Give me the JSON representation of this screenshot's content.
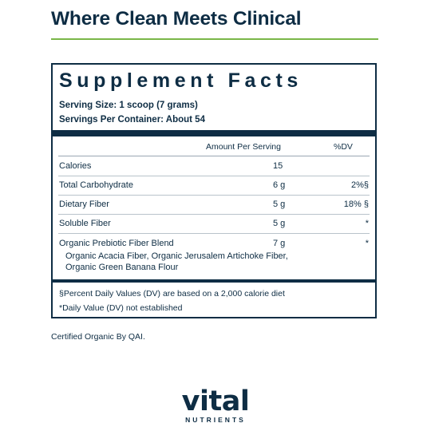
{
  "headline": "Where Clean Meets Clinical",
  "colors": {
    "navy": "#0e2d44",
    "accent_green": "#7ab648"
  },
  "facts": {
    "title": "Supplement Facts",
    "serving_size": "Serving Size: 1 scoop (7 grams)",
    "servings_per_container": "Servings Per Container: About 54",
    "col_amount": "Amount Per Serving",
    "col_dv": "%DV",
    "rows": [
      {
        "name": "Calories",
        "amount": "15",
        "dv": ""
      },
      {
        "name": "Total Carbohydrate",
        "amount": "6 g",
        "dv": "2%§"
      },
      {
        "name": "Dietary Fiber",
        "amount": "5 g",
        "dv": "18% §"
      },
      {
        "name": "Soluble Fiber",
        "amount": "5 g",
        "dv": "*"
      },
      {
        "name": "Organic Prebiotic Fiber Blend",
        "amount": "7 g",
        "dv": "*",
        "sub": "Organic Acacia Fiber, Organic Jerusalem Artichoke Fiber, Organic Green Banana Flour"
      }
    ],
    "footnote_1": "§Percent Daily Values (DV) are based on a 2,000 calorie diet",
    "footnote_2": "*Daily Value (DV) not established"
  },
  "certification": "Certified Organic By QAI.",
  "brand": {
    "name": "vital",
    "tagline": "NUTRIENTS"
  }
}
